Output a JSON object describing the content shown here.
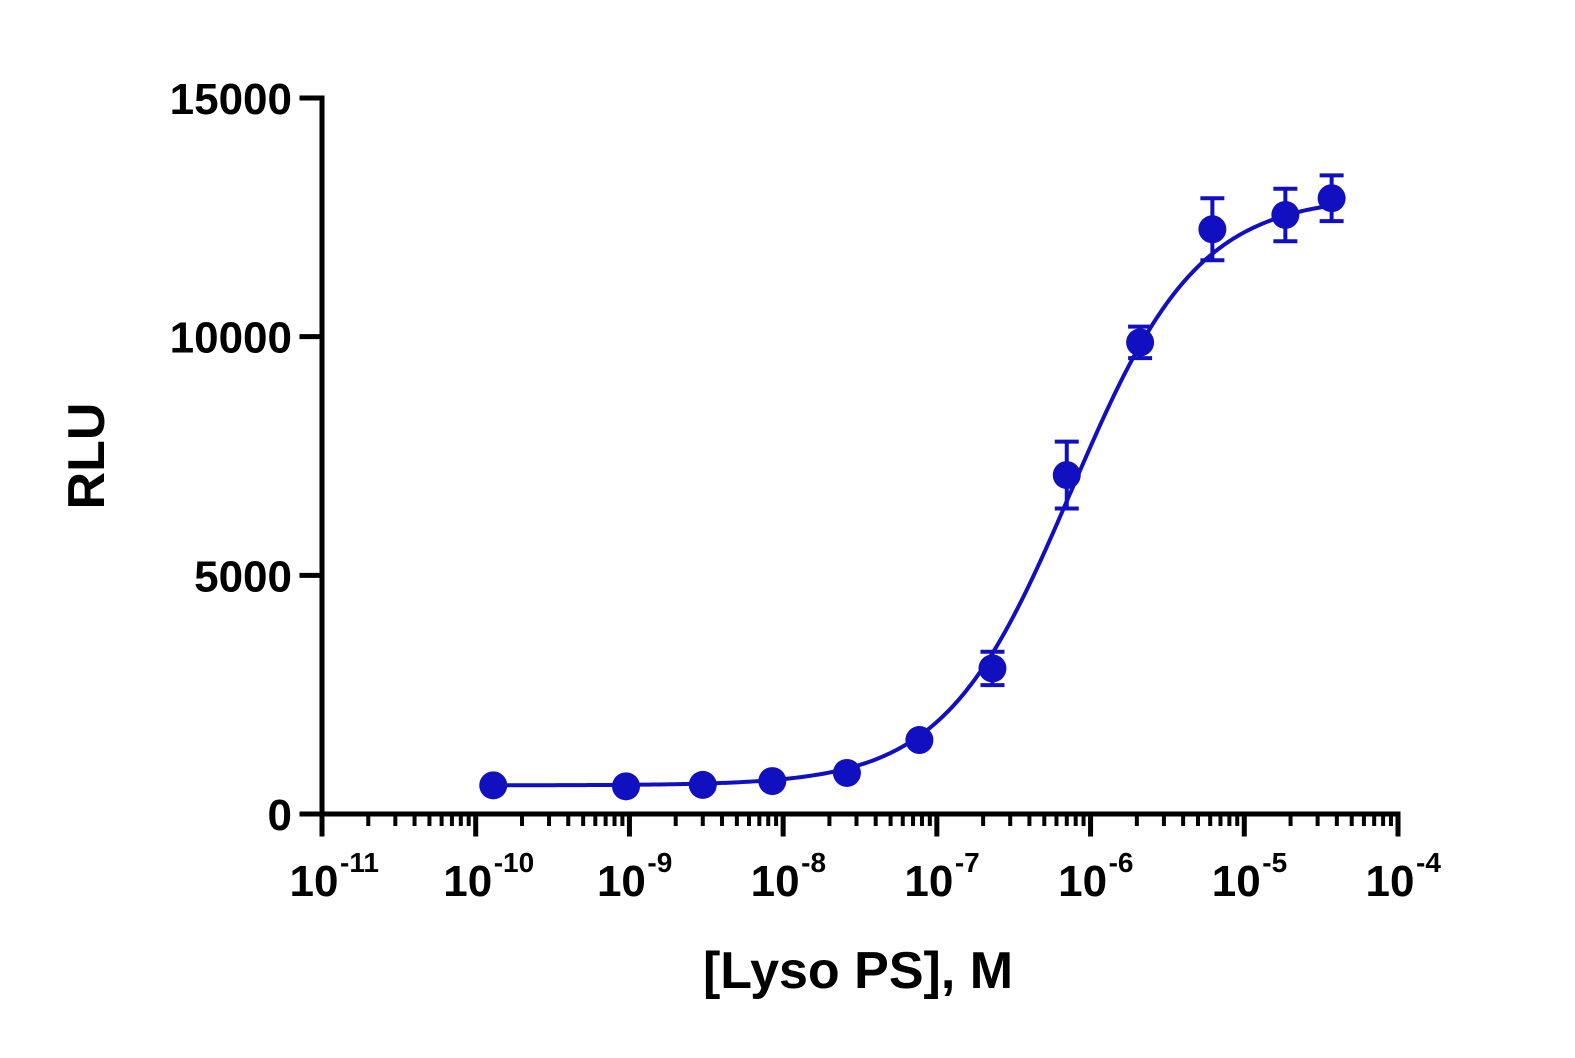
{
  "chart_data": {
    "type": "scatter",
    "xlabel": "[Lyso PS], M",
    "ylabel": "RLU",
    "xscale": "log",
    "xlim": [
      1e-11,
      0.0001
    ],
    "ylim": [
      0,
      15000
    ],
    "yticks": [
      0,
      5000,
      10000,
      15000
    ],
    "ytick_labels": [
      "0",
      "5000",
      "10000",
      "15000"
    ],
    "xticks": [
      {
        "base": "10",
        "exp": "-11",
        "value": 1e-11
      },
      {
        "base": "10",
        "exp": "-10",
        "value": 1e-10
      },
      {
        "base": "10",
        "exp": "-9",
        "value": 1e-09
      },
      {
        "base": "10",
        "exp": "-8",
        "value": 1e-08
      },
      {
        "base": "10",
        "exp": "-7",
        "value": 1e-07
      },
      {
        "base": "10",
        "exp": "-6",
        "value": 1e-06
      },
      {
        "base": "10",
        "exp": "-5",
        "value": 1e-05
      },
      {
        "base": "10",
        "exp": "-4",
        "value": 0.0001
      }
    ],
    "grid": false,
    "legend": "none",
    "color": "#1010c0",
    "series": [
      {
        "x": [
          1.3e-10,
          9.5e-10,
          3e-09,
          8.5e-09,
          2.6e-08,
          7.7e-08,
          2.3e-07,
          7e-07,
          2.1e-06,
          6.2e-06,
          1.85e-05,
          3.7e-05
        ],
        "y": [
          600,
          580,
          610,
          690,
          860,
          1550,
          3050,
          7100,
          9880,
          12250,
          12550,
          12900
        ],
        "err": [
          0,
          0,
          0,
          0,
          0,
          0,
          350,
          700,
          330,
          650,
          550,
          480
        ]
      }
    ],
    "fit": {
      "model": "four-parameter logistic",
      "bottom": 600,
      "top": 12950,
      "ec50": 7.5e-07,
      "hill": 1.05
    }
  }
}
